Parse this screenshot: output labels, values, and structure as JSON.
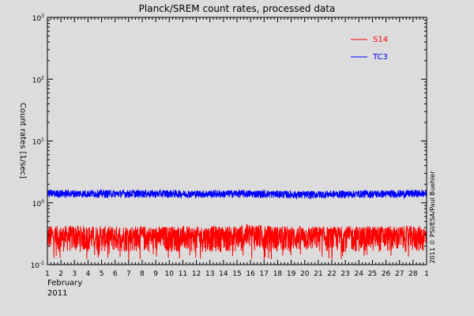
{
  "chart_data": {
    "type": "line",
    "title": "Planck/SREM count rates, processed data",
    "ylabel": "Count rates [1/sec]",
    "xlabel": "",
    "x_month_label": "February",
    "x_year_label": "2011",
    "yscale": "log",
    "ylim": [
      0.1,
      1000
    ],
    "y_ticks": [
      {
        "value": 0.1,
        "base": "10",
        "exp": "-1"
      },
      {
        "value": 1,
        "base": "10",
        "exp": "0"
      },
      {
        "value": 10,
        "base": "10",
        "exp": "1"
      },
      {
        "value": 100,
        "base": "10",
        "exp": "2"
      },
      {
        "value": 1000,
        "base": "10",
        "exp": "3"
      }
    ],
    "x_range": [
      "2011-02-01",
      "2011-03-01"
    ],
    "x_tick_labels": [
      "1",
      "2",
      "3",
      "4",
      "5",
      "6",
      "7",
      "8",
      "9",
      "10",
      "11",
      "12",
      "13",
      "14",
      "15",
      "16",
      "17",
      "18",
      "19",
      "20",
      "21",
      "22",
      "23",
      "24",
      "25",
      "26",
      "27",
      "28",
      "1"
    ],
    "grid": false,
    "legend_position": "top-right",
    "series": [
      {
        "name": "S14",
        "color": "#ff0000",
        "daily_upper": [
          0.43,
          0.42,
          0.43,
          0.42,
          0.42,
          0.42,
          0.43,
          0.42,
          0.41,
          0.42,
          0.42,
          0.41,
          0.42,
          0.42,
          0.42,
          0.47,
          0.43,
          0.42,
          0.42,
          0.42,
          0.42,
          0.41,
          0.42,
          0.42,
          0.42,
          0.42,
          0.42,
          0.42,
          0.42
        ],
        "daily_mean": [
          0.26,
          0.25,
          0.26,
          0.25,
          0.25,
          0.25,
          0.26,
          0.25,
          0.25,
          0.25,
          0.25,
          0.25,
          0.25,
          0.25,
          0.25,
          0.27,
          0.26,
          0.25,
          0.25,
          0.25,
          0.25,
          0.25,
          0.25,
          0.25,
          0.25,
          0.25,
          0.25,
          0.25,
          0.25
        ],
        "daily_lower": [
          0.16,
          0.16,
          0.16,
          0.16,
          0.16,
          0.16,
          0.16,
          0.16,
          0.16,
          0.16,
          0.16,
          0.16,
          0.16,
          0.16,
          0.16,
          0.17,
          0.16,
          0.16,
          0.16,
          0.16,
          0.16,
          0.16,
          0.16,
          0.16,
          0.16,
          0.16,
          0.16,
          0.16,
          0.16
        ],
        "dropout_floor": 0.12
      },
      {
        "name": "TC3",
        "color": "#0000ff",
        "daily_upper": [
          1.63,
          1.62,
          1.62,
          1.62,
          1.62,
          1.62,
          1.62,
          1.62,
          1.61,
          1.62,
          1.6,
          1.6,
          1.61,
          1.6,
          1.62,
          1.61,
          1.6,
          1.59,
          1.56,
          1.55,
          1.57,
          1.58,
          1.58,
          1.6,
          1.6,
          1.6,
          1.61,
          1.62,
          1.62
        ],
        "daily_mean": [
          1.4,
          1.39,
          1.39,
          1.39,
          1.39,
          1.39,
          1.39,
          1.39,
          1.38,
          1.39,
          1.38,
          1.38,
          1.38,
          1.38,
          1.39,
          1.38,
          1.38,
          1.37,
          1.34,
          1.33,
          1.35,
          1.36,
          1.36,
          1.37,
          1.37,
          1.37,
          1.38,
          1.39,
          1.39
        ],
        "daily_lower": [
          1.22,
          1.21,
          1.21,
          1.21,
          1.21,
          1.21,
          1.21,
          1.21,
          1.2,
          1.21,
          1.2,
          1.2,
          1.2,
          1.2,
          1.21,
          1.2,
          1.2,
          1.19,
          1.17,
          1.16,
          1.18,
          1.19,
          1.19,
          1.2,
          1.2,
          1.2,
          1.2,
          1.21,
          1.21
        ]
      }
    ],
    "credit": "2011 © PSI/ESA/Paul Buehler"
  }
}
